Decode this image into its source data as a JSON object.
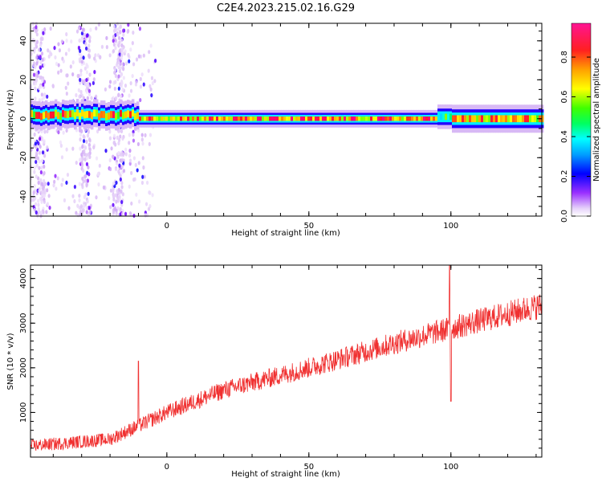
{
  "title": "C2E4.2023.215.02.16.G29",
  "chart_data": [
    {
      "type": "heatmap",
      "xlabel": "Height of straight line (km)",
      "ylabel": "Frequency (Hz)",
      "xlim": [
        -48,
        132
      ],
      "ylim": [
        -50,
        49
      ],
      "x_ticks": [
        0,
        50,
        100
      ],
      "y_ticks": [
        -40,
        -20,
        0,
        20,
        40
      ],
      "colorbar": {
        "label": "Normalized spectral amplitude",
        "range": [
          0,
          0.97
        ],
        "ticks": [
          0.0,
          0.2,
          0.4,
          0.6,
          0.8
        ],
        "colormap": [
          "#ffffff",
          "#d8b8f5",
          "#7f00ff",
          "#0000ff",
          "#00bfff",
          "#00ffff",
          "#00ff40",
          "#7fff00",
          "#ffff00",
          "#ffa500",
          "#ff2020",
          "#ff0080",
          "#ff1493"
        ]
      },
      "dominant_frequency_hz": 0,
      "band": [
        {
          "x_range": [
            -48,
            -10
          ],
          "freq_center": 2,
          "half_width_hz": 4,
          "peak_amplitude": 0.85,
          "scatter_noise": true
        },
        {
          "x_range": [
            -10,
            95
          ],
          "freq_center": 0,
          "half_width_hz": 2.5,
          "peak_amplitude": 0.9
        },
        {
          "x_range": [
            85,
            100
          ],
          "freq_center": 1,
          "half_width_hz": 3.5,
          "peak_amplitude": 0.6
        },
        {
          "x_range": [
            100,
            132
          ],
          "freq_center": 0,
          "half_width_hz": 4,
          "peak_amplitude": 0.85
        }
      ]
    },
    {
      "type": "line",
      "xlabel": "Height of straight line (km)",
      "ylabel": "SNR (10 * v/v)",
      "xlim": [
        -48,
        132
      ],
      "ylim": [
        0,
        4300
      ],
      "x_ticks": [
        0,
        50,
        100
      ],
      "y_ticks": [
        1000,
        2000,
        3000,
        4000
      ],
      "color": "#f03030",
      "trend": [
        {
          "x": -48,
          "y": 250
        },
        {
          "x": -20,
          "y": 400
        },
        {
          "x": -10,
          "y": 700
        },
        {
          "x": 0,
          "y": 1000
        },
        {
          "x": 20,
          "y": 1500
        },
        {
          "x": 50,
          "y": 2000
        },
        {
          "x": 80,
          "y": 2550
        },
        {
          "x": 98,
          "y": 2850
        },
        {
          "x": 110,
          "y": 3050
        },
        {
          "x": 132,
          "y": 3400
        }
      ],
      "spikes": [
        {
          "x": -10,
          "y": 2150
        },
        {
          "x": 99.5,
          "y": 4300
        },
        {
          "x": 100,
          "y": 1250
        }
      ]
    }
  ]
}
